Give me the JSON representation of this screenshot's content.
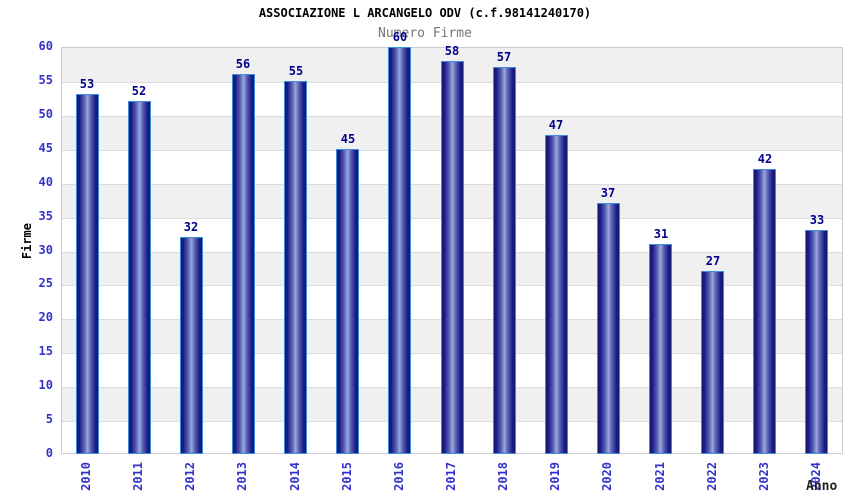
{
  "title": "ASSOCIAZIONE L ARCANGELO ODV (c.f.98141240170)",
  "subtitle": "Numero Firme",
  "chart_data": {
    "type": "bar",
    "title": "ASSOCIAZIONE L ARCANGELO ODV (c.f.98141240170)",
    "subtitle": "Numero Firme",
    "xlabel": "Anno",
    "ylabel": "Firme",
    "categories": [
      "2010",
      "2011",
      "2012",
      "2013",
      "2014",
      "2015",
      "2016",
      "2017",
      "2018",
      "2019",
      "2020",
      "2021",
      "2022",
      "2023",
      "2024"
    ],
    "values": [
      53,
      52,
      32,
      56,
      55,
      45,
      60,
      58,
      57,
      47,
      37,
      31,
      27,
      42,
      33
    ],
    "ylim": [
      0,
      60
    ],
    "ytick_step": 5,
    "yticks": [
      0,
      5,
      10,
      15,
      20,
      25,
      30,
      35,
      40,
      45,
      50,
      55,
      60
    ],
    "grid": "horizontal-bands",
    "legend": "none",
    "colors": {
      "bar_edge": "#14146e",
      "bar_mid": "#5a64b4",
      "bar_highlight": "#9ba6da",
      "bar_border": "#3d8edb",
      "tick_label": "#3333cc",
      "value_label": "#00008b",
      "title": "#000000",
      "subtitle": "#777777",
      "band_gray": "#f0f0f0",
      "band_white": "#ffffff",
      "plot_border": "#cccccc"
    }
  }
}
